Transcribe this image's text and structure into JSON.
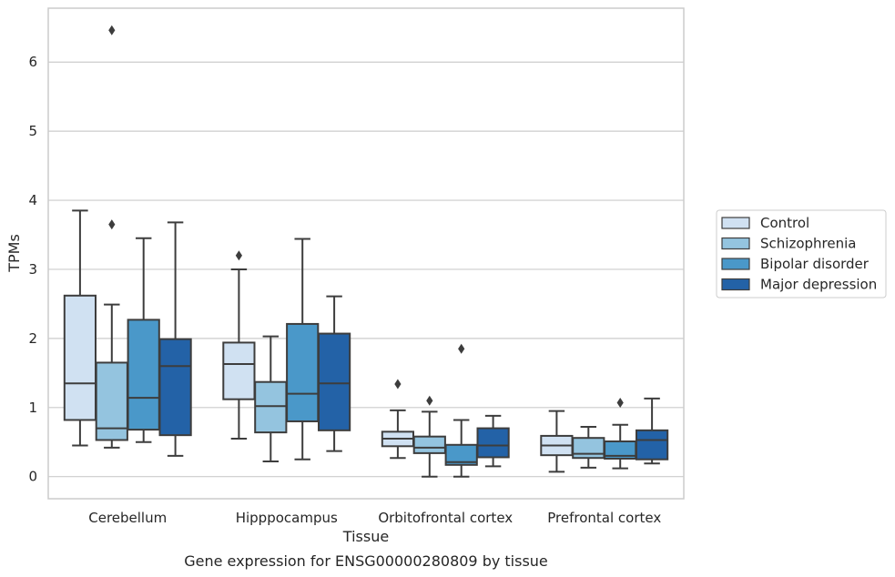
{
  "chart_data": {
    "type": "boxplot",
    "title": "",
    "caption": "Gene expression for ENSG00000280809 by tissue",
    "xlabel": "Tissue",
    "ylabel": "TPMs",
    "ylim": [
      -0.32,
      6.78
    ],
    "yticks": [
      0,
      1,
      2,
      3,
      4,
      5,
      6
    ],
    "grid": "horizontal",
    "legend_position": "right",
    "categories": [
      "Cerebellum",
      "Hipppocampus",
      "Orbitofrontal cortex",
      "Prefrontal cortex"
    ],
    "series": [
      {
        "name": "Control",
        "color": "#d0e1f2",
        "boxes": [
          {
            "whislo": 0.45,
            "q1": 0.82,
            "med": 1.35,
            "q3": 2.62,
            "whishi": 3.85,
            "fliers": []
          },
          {
            "whislo": 0.55,
            "q1": 1.12,
            "med": 1.63,
            "q3": 1.94,
            "whishi": 3.0,
            "fliers": [
              3.2
            ]
          },
          {
            "whislo": 0.27,
            "q1": 0.44,
            "med": 0.55,
            "q3": 0.65,
            "whishi": 0.96,
            "fliers": [
              1.34
            ]
          },
          {
            "whislo": 0.07,
            "q1": 0.31,
            "med": 0.45,
            "q3": 0.59,
            "whishi": 0.95,
            "fliers": []
          }
        ]
      },
      {
        "name": "Schizophrenia",
        "color": "#94c4df",
        "boxes": [
          {
            "whislo": 0.42,
            "q1": 0.53,
            "med": 0.7,
            "q3": 1.65,
            "whishi": 2.49,
            "fliers": [
              6.46,
              3.65
            ]
          },
          {
            "whislo": 0.22,
            "q1": 0.64,
            "med": 1.02,
            "q3": 1.37,
            "whishi": 2.03,
            "fliers": []
          },
          {
            "whislo": 0.0,
            "q1": 0.34,
            "med": 0.42,
            "q3": 0.58,
            "whishi": 0.94,
            "fliers": [
              1.1
            ]
          },
          {
            "whislo": 0.13,
            "q1": 0.27,
            "med": 0.33,
            "q3": 0.56,
            "whishi": 0.72,
            "fliers": []
          }
        ]
      },
      {
        "name": "Bipolar disorder",
        "color": "#4a98c9",
        "boxes": [
          {
            "whislo": 0.5,
            "q1": 0.68,
            "med": 1.14,
            "q3": 2.27,
            "whishi": 3.45,
            "fliers": []
          },
          {
            "whislo": 0.25,
            "q1": 0.8,
            "med": 1.2,
            "q3": 2.21,
            "whishi": 3.44,
            "fliers": []
          },
          {
            "whislo": 0.0,
            "q1": 0.17,
            "med": 0.21,
            "q3": 0.46,
            "whishi": 0.82,
            "fliers": [
              1.85
            ]
          },
          {
            "whislo": 0.12,
            "q1": 0.26,
            "med": 0.3,
            "q3": 0.51,
            "whishi": 0.75,
            "fliers": [
              1.07
            ]
          }
        ]
      },
      {
        "name": "Major depression",
        "color": "#2362a7",
        "boxes": [
          {
            "whislo": 0.3,
            "q1": 0.6,
            "med": 1.6,
            "q3": 1.99,
            "whishi": 3.68,
            "fliers": []
          },
          {
            "whislo": 0.37,
            "q1": 0.67,
            "med": 1.35,
            "q3": 2.07,
            "whishi": 2.61,
            "fliers": []
          },
          {
            "whislo": 0.15,
            "q1": 0.28,
            "med": 0.45,
            "q3": 0.7,
            "whishi": 0.88,
            "fliers": []
          },
          {
            "whislo": 0.19,
            "q1": 0.25,
            "med": 0.53,
            "q3": 0.67,
            "whishi": 1.13,
            "fliers": []
          }
        ]
      }
    ]
  }
}
